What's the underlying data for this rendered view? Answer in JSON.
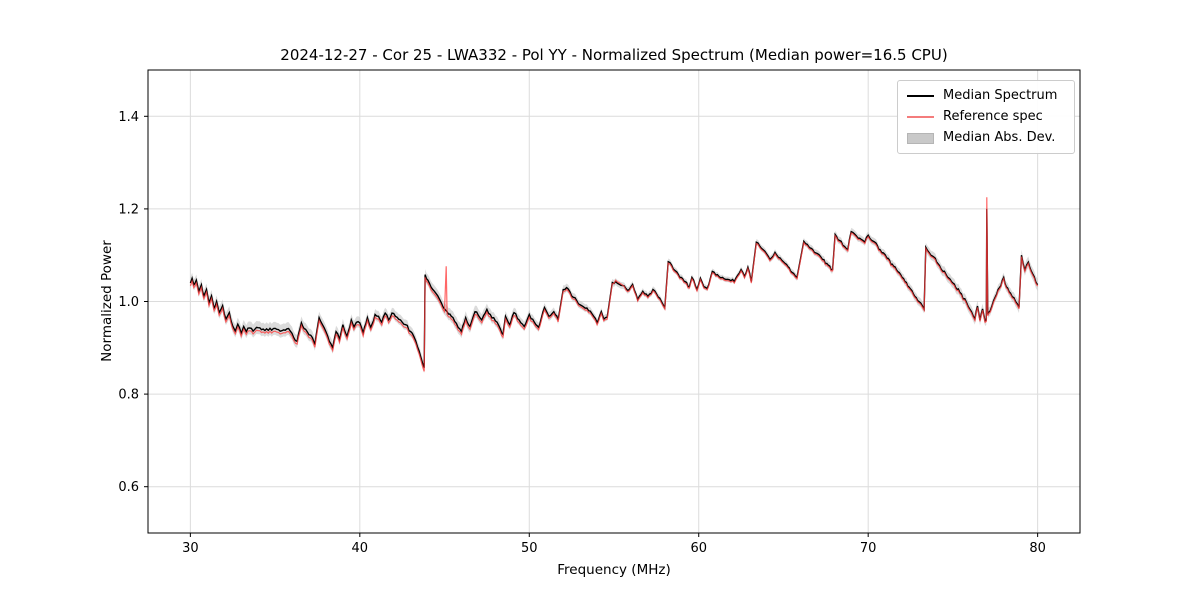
{
  "figure": {
    "title": "2024-12-27 - Cor 25 - LWA332 - Pol YY - Normalized Spectrum (Median power=16.5 CPU)",
    "xlabel": "Frequency (MHz)",
    "ylabel": "Normalized Power"
  },
  "legend": {
    "position": "upper right",
    "items": [
      {
        "label": "Median Spectrum",
        "type": "line",
        "color": "#000000"
      },
      {
        "label": "Reference spec",
        "type": "line",
        "color": "#f47c7c"
      },
      {
        "label": "Median Abs. Dev.",
        "type": "patch",
        "color": "#c9c9c9"
      }
    ]
  },
  "chart_data": {
    "type": "line",
    "title": "2024-12-27 - Cor 25 - LWA332 - Pol YY - Normalized Spectrum (Median power=16.5 CPU)",
    "xlabel": "Frequency (MHz)",
    "ylabel": "Normalized Power",
    "xlim": [
      27.5,
      82.5
    ],
    "ylim": [
      0.5,
      1.5
    ],
    "xticks": [
      30,
      40,
      50,
      60,
      70,
      80
    ],
    "yticks": [
      0.6,
      0.8,
      1.0,
      1.2,
      1.4
    ],
    "grid": true,
    "legend_position": "upper right",
    "median_power_cpu": 16.5,
    "series_names": [
      "Median Spectrum",
      "Reference spec",
      "Median Abs. Dev."
    ],
    "median_color": "#000000",
    "reference_color": "#ff3b3b",
    "band_color": "#bdbdbd",
    "noise_amplitude": 0.0035,
    "points_format": [
      "freq_mhz",
      "median_spectrum",
      "reference_spec"
    ],
    "points": [
      [
        30.0,
        1.04,
        1.034
      ],
      [
        30.1,
        1.05,
        1.044
      ],
      [
        30.2,
        1.036,
        1.03
      ],
      [
        30.35,
        1.046,
        1.04
      ],
      [
        30.5,
        1.022,
        1.016
      ],
      [
        30.65,
        1.036,
        1.03
      ],
      [
        30.8,
        1.012,
        1.006
      ],
      [
        30.95,
        1.026,
        1.02
      ],
      [
        31.1,
        0.997,
        0.991
      ],
      [
        31.25,
        1.012,
        1.006
      ],
      [
        31.4,
        0.986,
        0.98
      ],
      [
        31.55,
        1.0,
        0.994
      ],
      [
        31.7,
        0.976,
        0.97
      ],
      [
        31.9,
        0.991,
        0.985
      ],
      [
        32.1,
        0.962,
        0.956
      ],
      [
        32.3,
        0.976,
        0.97
      ],
      [
        32.5,
        0.947,
        0.941
      ],
      [
        32.65,
        0.936,
        0.93
      ],
      [
        32.8,
        0.951,
        0.945
      ],
      [
        33.0,
        0.931,
        0.925
      ],
      [
        33.15,
        0.946,
        0.94
      ],
      [
        33.3,
        0.935,
        0.929
      ],
      [
        33.5,
        0.943,
        0.937
      ],
      [
        33.7,
        0.936,
        0.93
      ],
      [
        33.9,
        0.944,
        0.938
      ],
      [
        34.2,
        0.939,
        0.933
      ],
      [
        34.5,
        0.941,
        0.935
      ],
      [
        34.8,
        0.938,
        0.932
      ],
      [
        35.1,
        0.94,
        0.934
      ],
      [
        35.4,
        0.937,
        0.931
      ],
      [
        35.7,
        0.941,
        0.935
      ],
      [
        35.9,
        0.936,
        0.93
      ],
      [
        36.1,
        0.922,
        0.916
      ],
      [
        36.3,
        0.914,
        0.908
      ],
      [
        36.55,
        0.954,
        0.948
      ],
      [
        36.8,
        0.94,
        0.934
      ],
      [
        37.0,
        0.928,
        0.922
      ],
      [
        37.2,
        0.922,
        0.916
      ],
      [
        37.35,
        0.907,
        0.901
      ],
      [
        37.6,
        0.965,
        0.959
      ],
      [
        37.8,
        0.95,
        0.944
      ],
      [
        38.0,
        0.935,
        0.929
      ],
      [
        38.2,
        0.914,
        0.908
      ],
      [
        38.4,
        0.9,
        0.894
      ],
      [
        38.6,
        0.935,
        0.929
      ],
      [
        38.8,
        0.918,
        0.912
      ],
      [
        39.0,
        0.95,
        0.944
      ],
      [
        39.25,
        0.925,
        0.919
      ],
      [
        39.5,
        0.96,
        0.954
      ],
      [
        39.65,
        0.945,
        0.939
      ],
      [
        39.8,
        0.955,
        0.949
      ],
      [
        40.0,
        0.954,
        0.948
      ],
      [
        40.2,
        0.932,
        0.926
      ],
      [
        40.45,
        0.965,
        0.959
      ],
      [
        40.65,
        0.944,
        0.938
      ],
      [
        40.9,
        0.972,
        0.966
      ],
      [
        41.1,
        0.968,
        0.962
      ],
      [
        41.3,
        0.955,
        0.949
      ],
      [
        41.5,
        0.975,
        0.969
      ],
      [
        41.7,
        0.96,
        0.954
      ],
      [
        41.9,
        0.975,
        0.969
      ],
      [
        42.1,
        0.968,
        0.962
      ],
      [
        42.4,
        0.96,
        0.954
      ],
      [
        42.7,
        0.95,
        0.944
      ],
      [
        43.0,
        0.935,
        0.929
      ],
      [
        43.3,
        0.915,
        0.909
      ],
      [
        43.6,
        0.88,
        0.874
      ],
      [
        43.8,
        0.857,
        0.849
      ],
      [
        43.85,
        1.058,
        1.052
      ],
      [
        44.1,
        1.04,
        1.034
      ],
      [
        44.4,
        1.022,
        1.016
      ],
      [
        44.7,
        1.005,
        0.999
      ],
      [
        45.0,
        0.984,
        0.978
      ],
      [
        45.1,
        0.98,
        1.076
      ],
      [
        45.15,
        0.978,
        0.972
      ],
      [
        45.4,
        0.968,
        0.962
      ],
      [
        45.6,
        0.957,
        0.951
      ],
      [
        45.8,
        0.944,
        0.938
      ],
      [
        46.0,
        0.935,
        0.929
      ],
      [
        46.25,
        0.965,
        0.959
      ],
      [
        46.5,
        0.946,
        0.94
      ],
      [
        46.8,
        0.978,
        0.972
      ],
      [
        47.0,
        0.97,
        0.964
      ],
      [
        47.2,
        0.96,
        0.954
      ],
      [
        47.5,
        0.983,
        0.977
      ],
      [
        47.7,
        0.972,
        0.966
      ],
      [
        48.0,
        0.958,
        0.952
      ],
      [
        48.3,
        0.94,
        0.934
      ],
      [
        48.45,
        0.929,
        0.923
      ],
      [
        48.6,
        0.968,
        0.962
      ],
      [
        48.85,
        0.95,
        0.944
      ],
      [
        49.1,
        0.976,
        0.97
      ],
      [
        49.4,
        0.96,
        0.954
      ],
      [
        49.7,
        0.946,
        0.94
      ],
      [
        50.0,
        0.972,
        0.966
      ],
      [
        50.3,
        0.955,
        0.95
      ],
      [
        50.55,
        0.944,
        0.939
      ],
      [
        50.9,
        0.987,
        0.982
      ],
      [
        51.15,
        0.968,
        0.964
      ],
      [
        51.45,
        0.978,
        0.974
      ],
      [
        51.7,
        0.96,
        0.956
      ],
      [
        52.0,
        1.026,
        1.022
      ],
      [
        52.2,
        1.03,
        1.026
      ],
      [
        52.5,
        1.012,
        1.008
      ],
      [
        52.8,
        1.002,
        0.998
      ],
      [
        53.1,
        0.991,
        0.987
      ],
      [
        53.5,
        0.98,
        0.976
      ],
      [
        53.8,
        0.968,
        0.964
      ],
      [
        54.0,
        0.954,
        0.95
      ],
      [
        54.25,
        0.978,
        0.974
      ],
      [
        54.4,
        0.962,
        0.958
      ],
      [
        54.6,
        0.966,
        0.962
      ],
      [
        54.9,
        1.041,
        1.038
      ],
      [
        55.1,
        1.043,
        1.046
      ],
      [
        55.4,
        1.035,
        1.038
      ],
      [
        55.7,
        1.028,
        1.025
      ],
      [
        55.9,
        1.026,
        1.023
      ],
      [
        56.1,
        1.037,
        1.034
      ],
      [
        56.4,
        1.004,
        1.001
      ],
      [
        56.7,
        1.022,
        1.019
      ],
      [
        57.0,
        1.011,
        1.008
      ],
      [
        57.3,
        1.026,
        1.023
      ],
      [
        57.6,
        1.01,
        1.007
      ],
      [
        58.0,
        0.987,
        0.984
      ],
      [
        58.2,
        1.086,
        1.083
      ],
      [
        58.5,
        1.07,
        1.067
      ],
      [
        58.8,
        1.058,
        1.055
      ],
      [
        59.2,
        1.043,
        1.04
      ],
      [
        59.45,
        1.032,
        1.029
      ],
      [
        59.6,
        1.052,
        1.049
      ],
      [
        59.9,
        1.026,
        1.023
      ],
      [
        60.1,
        1.05,
        1.047
      ],
      [
        60.3,
        1.032,
        1.029
      ],
      [
        60.5,
        1.028,
        1.025
      ],
      [
        60.8,
        1.065,
        1.062
      ],
      [
        61.1,
        1.058,
        1.055
      ],
      [
        61.4,
        1.052,
        1.049
      ],
      [
        61.7,
        1.048,
        1.045
      ],
      [
        62.1,
        1.043,
        1.04
      ],
      [
        62.5,
        1.069,
        1.066
      ],
      [
        62.7,
        1.054,
        1.051
      ],
      [
        62.9,
        1.074,
        1.071
      ],
      [
        63.1,
        1.043,
        1.04
      ],
      [
        63.4,
        1.128,
        1.125
      ],
      [
        63.7,
        1.115,
        1.112
      ],
      [
        64.0,
        1.103,
        1.1
      ],
      [
        64.2,
        1.091,
        1.088
      ],
      [
        64.5,
        1.106,
        1.103
      ],
      [
        64.8,
        1.094,
        1.091
      ],
      [
        65.1,
        1.082,
        1.079
      ],
      [
        65.5,
        1.063,
        1.06
      ],
      [
        65.8,
        1.052,
        1.049
      ],
      [
        66.2,
        1.13,
        1.127
      ],
      [
        66.5,
        1.118,
        1.115
      ],
      [
        66.9,
        1.105,
        1.102
      ],
      [
        67.3,
        1.091,
        1.088
      ],
      [
        67.9,
        1.069,
        1.066
      ],
      [
        68.05,
        1.145,
        1.142
      ],
      [
        68.3,
        1.132,
        1.129
      ],
      [
        68.6,
        1.119,
        1.116
      ],
      [
        68.8,
        1.112,
        1.109
      ],
      [
        69.0,
        1.151,
        1.148
      ],
      [
        69.3,
        1.142,
        1.139
      ],
      [
        69.6,
        1.134,
        1.131
      ],
      [
        69.8,
        1.128,
        1.125
      ],
      [
        70.0,
        1.143,
        1.14
      ],
      [
        70.3,
        1.13,
        1.127
      ],
      [
        70.7,
        1.112,
        1.109
      ],
      [
        71.1,
        1.094,
        1.091
      ],
      [
        71.5,
        1.076,
        1.073
      ],
      [
        72.0,
        1.052,
        1.049
      ],
      [
        72.5,
        1.027,
        1.024
      ],
      [
        73.0,
        1.0,
        0.997
      ],
      [
        73.3,
        0.984,
        0.981
      ],
      [
        73.4,
        1.117,
        1.114
      ],
      [
        73.8,
        1.098,
        1.095
      ],
      [
        74.2,
        1.078,
        1.075
      ],
      [
        74.6,
        1.058,
        1.055
      ],
      [
        75.0,
        1.04,
        1.037
      ],
      [
        75.4,
        1.02,
        1.017
      ],
      [
        75.8,
        0.998,
        0.995
      ],
      [
        76.1,
        0.978,
        0.975
      ],
      [
        76.3,
        0.962,
        0.959
      ],
      [
        76.45,
        0.99,
        0.987
      ],
      [
        76.6,
        0.96,
        0.957
      ],
      [
        76.75,
        0.984,
        0.981
      ],
      [
        76.9,
        0.958,
        0.955
      ],
      [
        76.97,
        0.96,
        0.957
      ],
      [
        77.0,
        1.2,
        1.225
      ],
      [
        77.06,
        0.972,
        0.969
      ],
      [
        77.1,
        0.976,
        0.973
      ],
      [
        77.3,
        0.99,
        0.987
      ],
      [
        77.5,
        1.01,
        1.007
      ],
      [
        77.75,
        1.03,
        1.027
      ],
      [
        78.0,
        1.052,
        1.049
      ],
      [
        78.15,
        1.032,
        1.029
      ],
      [
        78.4,
        1.018,
        1.015
      ],
      [
        78.7,
        1.0,
        0.997
      ],
      [
        78.9,
        0.987,
        0.984
      ],
      [
        79.05,
        1.1,
        1.097
      ],
      [
        79.25,
        1.068,
        1.065
      ],
      [
        79.45,
        1.085,
        1.082
      ],
      [
        79.7,
        1.06,
        1.057
      ],
      [
        80.0,
        1.036,
        1.033
      ]
    ],
    "mad_band_format": [
      "freq_mhz",
      "median_abs_dev"
    ],
    "mad_band": [
      [
        30,
        0.012
      ],
      [
        33,
        0.014
      ],
      [
        36,
        0.014
      ],
      [
        38,
        0.013
      ],
      [
        40,
        0.012
      ],
      [
        43,
        0.011
      ],
      [
        43.9,
        0.012
      ],
      [
        46,
        0.014
      ],
      [
        48,
        0.012
      ],
      [
        50,
        0.01
      ],
      [
        52,
        0.009
      ],
      [
        54,
        0.008
      ],
      [
        56,
        0.007
      ],
      [
        58,
        0.007
      ],
      [
        60,
        0.006
      ],
      [
        62,
        0.006
      ],
      [
        64,
        0.007
      ],
      [
        66,
        0.007
      ],
      [
        68,
        0.008
      ],
      [
        70,
        0.008
      ],
      [
        72,
        0.009
      ],
      [
        73.5,
        0.01
      ],
      [
        75,
        0.011
      ],
      [
        76.5,
        0.012
      ],
      [
        77.2,
        0.01
      ],
      [
        78,
        0.01
      ],
      [
        79,
        0.012
      ],
      [
        80,
        0.013
      ]
    ]
  }
}
